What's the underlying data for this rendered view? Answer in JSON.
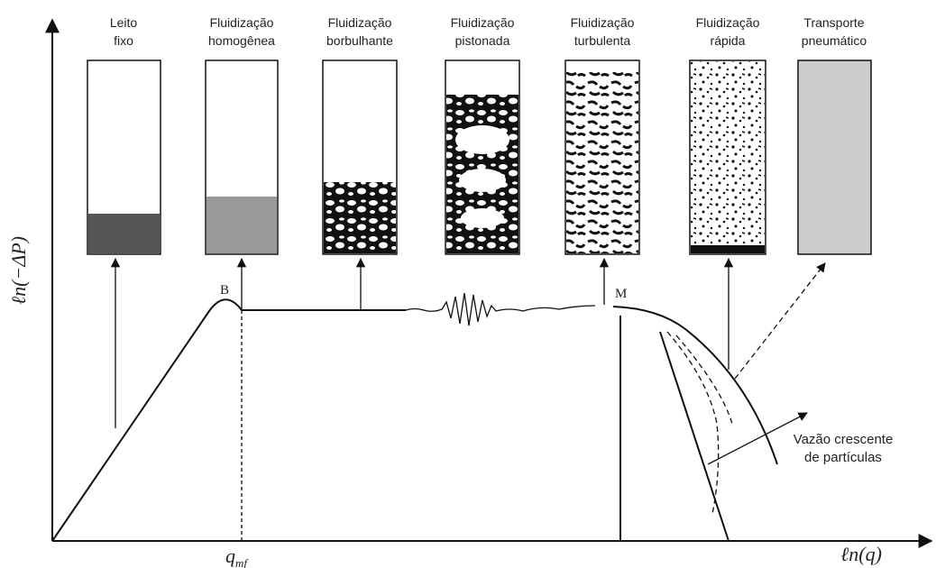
{
  "diagram": {
    "y_axis_label": "ℓn(−ΔP)",
    "x_axis_label": "ℓn(q)",
    "x_marker": {
      "base": "q",
      "sub": "mf"
    },
    "points": [
      "B",
      "M"
    ],
    "regimes": [
      [
        "Leito",
        "fixo"
      ],
      [
        "Fluidização",
        "homogênea"
      ],
      [
        "Fluidização",
        "borbulhante"
      ],
      [
        "Fluidização",
        "pistonada"
      ],
      [
        "Fluidização",
        "turbulenta"
      ],
      [
        "Fluidização",
        "rápida"
      ],
      [
        "Transporte",
        "pneumático"
      ]
    ],
    "annotation": [
      "Vazão crescente",
      "de partículas"
    ]
  }
}
